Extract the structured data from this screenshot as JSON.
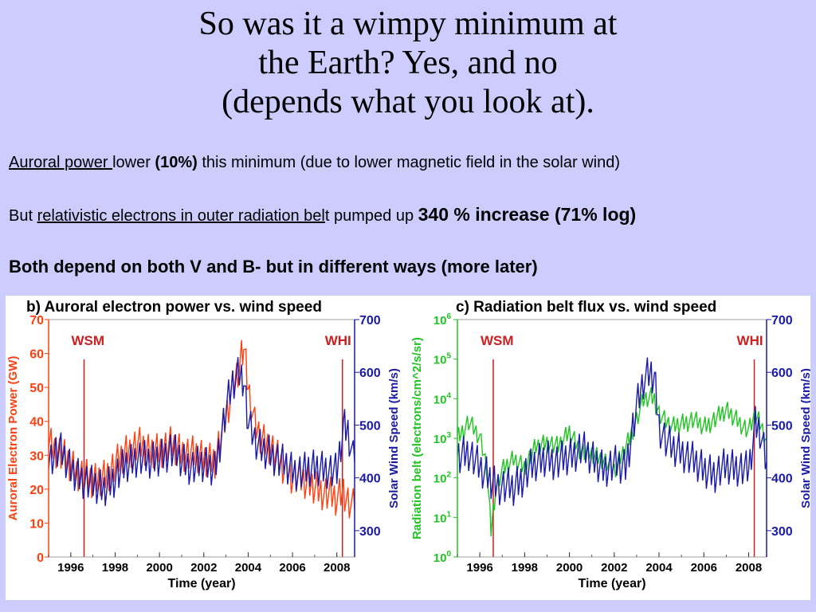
{
  "slide": {
    "title_lines": [
      "So was it a wimpy minimum at",
      "the Earth? Yes, and no",
      "(depends what you look at)."
    ],
    "line1": {
      "u": "Auroral power ",
      "t1": "lower ",
      "b": "(10%)",
      "t2": " this minimum (due to lower magnetic field in the solar wind)"
    },
    "line2": {
      "t1": "But ",
      "u": "relativistic electrons in outer radiation bel",
      "t2": "t pumped up ",
      "b": "340 % increase (71% log)"
    },
    "line3": "Both depend on both V and B- but in different ways (more later)"
  },
  "colors": {
    "background": "#ccccff",
    "auroral": "#ff4010",
    "wind": "#1a1aa8",
    "radiation": "#22c422",
    "marker": "#cc2020",
    "label_red": "#cc2020"
  },
  "chart_data": [
    {
      "type": "line",
      "title": "b) Auroral electron power vs. wind speed",
      "xlabel": "Time (year)",
      "ylabel_left": "Auroral Electron Power (GW)",
      "ylabel_right": "Solar Wind Speed (km/s)",
      "xlim": [
        1995.0,
        2008.8
      ],
      "ylim_left": [
        0,
        70
      ],
      "ylim_right": [
        250,
        700
      ],
      "x_ticks": [
        "1996",
        "1998",
        "2000",
        "2002",
        "2004",
        "2006",
        "2008"
      ],
      "y_ticks_left": [
        "0",
        "10",
        "20",
        "30",
        "40",
        "50",
        "60",
        "70"
      ],
      "y_ticks_right": [
        "300",
        "400",
        "500",
        "600",
        "700"
      ],
      "markers": [
        {
          "label": "WSM",
          "x": 1996.6
        },
        {
          "label": "WHI",
          "x": 2008.25
        }
      ],
      "series": [
        {
          "axis": "left",
          "x": [
            1995.0,
            1995.5,
            1996.0,
            1996.5,
            1997.0,
            1997.5,
            1998.0,
            1998.5,
            1999.0,
            1999.5,
            2000.0,
            2000.5,
            2001.0,
            2001.5,
            2002.0,
            2002.5,
            2003.0,
            2003.3,
            2003.6,
            2003.8,
            2004.0,
            2004.3,
            2004.6,
            2005.0,
            2005.5,
            2006.0,
            2006.5,
            2007.0,
            2007.5,
            2008.0,
            2008.3,
            2008.5,
            2008.8
          ],
          "values": [
            34,
            31,
            27,
            24,
            22,
            24,
            27,
            31,
            33,
            31,
            32,
            33,
            31,
            30,
            29,
            29,
            41,
            50,
            57,
            62,
            49,
            39,
            35,
            33,
            27,
            24,
            22,
            21,
            19,
            17,
            20,
            16,
            14
          ]
        },
        {
          "axis": "right",
          "x": [
            1995.0,
            1995.5,
            1996.0,
            1996.5,
            1997.0,
            1997.5,
            1998.0,
            1998.5,
            1999.0,
            1999.5,
            2000.0,
            2000.5,
            2001.0,
            2001.5,
            2002.0,
            2002.5,
            2003.0,
            2003.3,
            2003.6,
            2003.8,
            2004.0,
            2004.3,
            2004.6,
            2005.0,
            2005.5,
            2006.0,
            2006.5,
            2007.0,
            2007.5,
            2008.0,
            2008.3,
            2008.5,
            2008.8
          ],
          "values": [
            440,
            450,
            415,
            400,
            385,
            380,
            405,
            425,
            440,
            430,
            440,
            455,
            435,
            420,
            425,
            420,
            530,
            580,
            600,
            590,
            500,
            470,
            455,
            450,
            430,
            415,
            410,
            420,
            420,
            410,
            500,
            490,
            430
          ]
        }
      ]
    },
    {
      "type": "line",
      "title": "c) Radiation belt flux vs. wind speed",
      "xlabel": "Time (year)",
      "ylabel_left": "Radiation belt (electrons/cm^2/s/sr)",
      "ylabel_right": "Solar Wind Speed (km/s)",
      "xlim": [
        1995.0,
        2008.8
      ],
      "ylim_left_log10": [
        0,
        6
      ],
      "ylim_right": [
        250,
        700
      ],
      "x_ticks": [
        "1996",
        "1998",
        "2000",
        "2002",
        "2004",
        "2006",
        "2008"
      ],
      "y_ticks_left_base": "10",
      "y_ticks_left_exp": [
        "0",
        "1",
        "2",
        "3",
        "4",
        "5",
        "6"
      ],
      "y_ticks_right": [
        "300",
        "400",
        "500",
        "600",
        "700"
      ],
      "markers": [
        {
          "label": "WSM",
          "x": 1996.6
        },
        {
          "label": "WHI",
          "x": 2008.25
        }
      ],
      "series": [
        {
          "axis": "left",
          "x": [
            1995.0,
            1995.5,
            1996.0,
            1996.3,
            1996.5,
            1996.7,
            1997.0,
            1997.5,
            1998.0,
            1998.5,
            1999.0,
            1999.5,
            2000.0,
            2000.5,
            2001.0,
            2001.5,
            2002.0,
            2002.5,
            2003.0,
            2003.3,
            2003.6,
            2003.8,
            2004.0,
            2004.3,
            2004.6,
            2005.0,
            2005.5,
            2006.0,
            2006.5,
            2007.0,
            2007.5,
            2008.0,
            2008.3,
            2008.5,
            2008.8
          ],
          "values": [
            1000,
            2500,
            1000,
            200,
            5,
            50,
            150,
            300,
            200,
            600,
            800,
            600,
            1500,
            500,
            400,
            300,
            150,
            600,
            3000,
            9000,
            12000,
            10000,
            4000,
            2500,
            2000,
            2500,
            3000,
            2000,
            3000,
            5000,
            3000,
            1500,
            4000,
            2500,
            1000
          ]
        },
        {
          "axis": "right",
          "x": [
            1995.0,
            1995.5,
            1996.0,
            1996.3,
            1996.5,
            1996.7,
            1997.0,
            1997.5,
            1998.0,
            1998.5,
            1999.0,
            1999.5,
            2000.0,
            2000.5,
            2001.0,
            2001.5,
            2002.0,
            2002.5,
            2003.0,
            2003.3,
            2003.6,
            2003.8,
            2004.0,
            2004.3,
            2004.6,
            2005.0,
            2005.5,
            2006.0,
            2006.5,
            2007.0,
            2007.5,
            2008.0,
            2008.3,
            2008.5,
            2008.8
          ],
          "values": [
            440,
            450,
            415,
            405,
            395,
            390,
            385,
            380,
            405,
            425,
            440,
            430,
            440,
            455,
            435,
            420,
            425,
            420,
            530,
            580,
            600,
            590,
            500,
            470,
            455,
            450,
            430,
            415,
            410,
            420,
            420,
            410,
            500,
            490,
            430
          ]
        }
      ]
    }
  ]
}
